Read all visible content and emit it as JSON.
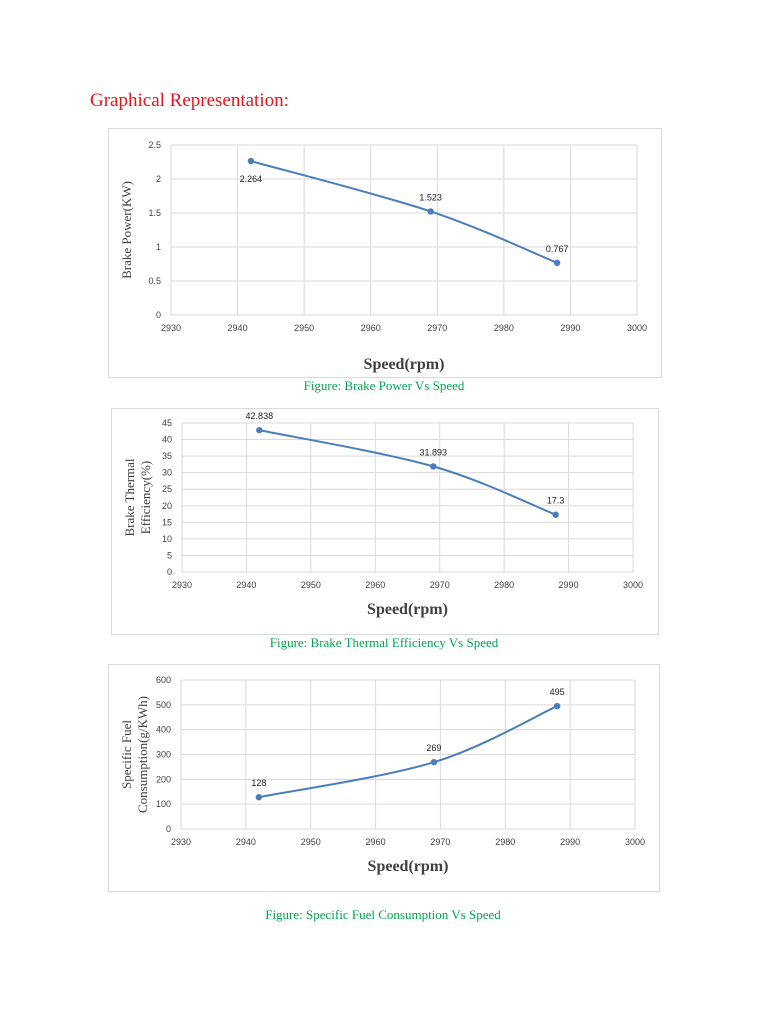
{
  "heading": "Graphical Representation:",
  "captions": [
    "Figure: Brake Power Vs Speed",
    "Figure: Brake Thermal Efficiency Vs Speed",
    "Figure: Specific Fuel Consumption Vs Speed"
  ],
  "colors": {
    "series": "#4a7ebb",
    "grid": "#d9d9d9",
    "heading": "#e8141b",
    "caption": "#00a651"
  },
  "chart_data": [
    {
      "type": "line",
      "x": [
        2942,
        2969,
        2988
      ],
      "values": [
        2.264,
        1.523,
        0.767
      ],
      "data_labels": [
        "2.264",
        "1.523",
        "0.767"
      ],
      "xlabel": "Speed(rpm)",
      "ylabel": [
        "Brake Power(KW)"
      ],
      "xlim": [
        2930,
        3000
      ],
      "ylim": [
        0,
        2.5
      ],
      "xticks": [
        "2930",
        "2940",
        "2950",
        "2960",
        "2970",
        "2980",
        "2990",
        "3000"
      ],
      "yticks": [
        "0",
        "0.5",
        "1",
        "1.5",
        "2",
        "2.5"
      ],
      "grid": true
    },
    {
      "type": "line",
      "x": [
        2942,
        2969,
        2988
      ],
      "values": [
        42.838,
        31.893,
        17.3
      ],
      "data_labels": [
        "42.838",
        "31.893",
        "17.3"
      ],
      "xlabel": "Speed(rpm)",
      "ylabel": [
        "Brake Thermal",
        "Efficiency(%)"
      ],
      "xlim": [
        2930,
        3000
      ],
      "ylim": [
        0,
        45
      ],
      "xticks": [
        "2930",
        "2940",
        "2950",
        "2960",
        "2970",
        "2980",
        "2990",
        "3000"
      ],
      "yticks": [
        "0",
        "5",
        "10",
        "15",
        "20",
        "25",
        "30",
        "35",
        "40",
        "45"
      ],
      "grid": true
    },
    {
      "type": "line",
      "x": [
        2942,
        2969,
        2988
      ],
      "values": [
        128,
        269,
        495
      ],
      "data_labels": [
        "128",
        "269",
        "495"
      ],
      "xlabel": "Speed(rpm)",
      "ylabel": [
        "Specific Fuel",
        "Consumption(g/KWh)"
      ],
      "xlim": [
        2930,
        3000
      ],
      "ylim": [
        0,
        600
      ],
      "xticks": [
        "2930",
        "2940",
        "2950",
        "2960",
        "2970",
        "2980",
        "2990",
        "3000"
      ],
      "yticks": [
        "0",
        "100",
        "200",
        "300",
        "400",
        "500",
        "600"
      ],
      "grid": true
    }
  ]
}
